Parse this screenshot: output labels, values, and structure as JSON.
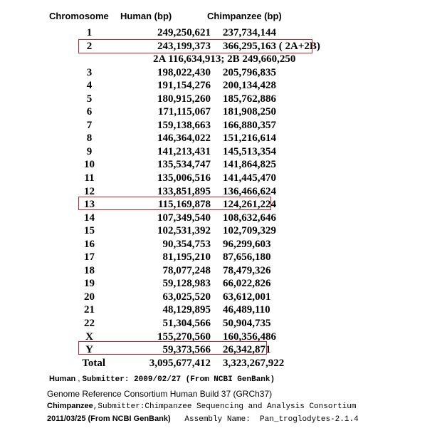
{
  "headers": {
    "chromosome": "Chromosome",
    "human": "Human  (bp)",
    "chimp": "Chimpanzee  (bp)"
  },
  "rows": [
    {
      "chr": "1",
      "human": "249,250,621",
      "chimp": "237,734,144"
    },
    {
      "chr": "2",
      "human": "243,199,373",
      "chimp": "366,295,163 ( 2A+2B)"
    },
    {
      "chr": "3",
      "human": "198,022,430",
      "chimp": "205,796,835"
    },
    {
      "chr": "4",
      "human": "191,154,276",
      "chimp": "200,134,428"
    },
    {
      "chr": "5",
      "human": "180,915,260",
      "chimp": "185,762,886"
    },
    {
      "chr": "6",
      "human": "171,115,067",
      "chimp": "181,908,250"
    },
    {
      "chr": "7",
      "human": "159,138,663",
      "chimp": "166,880,357"
    },
    {
      "chr": "8",
      "human": "146,364,022",
      "chimp": "151,216,614"
    },
    {
      "chr": "9",
      "human": "141,213,431",
      "chimp": "145,513,354"
    },
    {
      "chr": "10",
      "human": "135,534,747",
      "chimp": "141,864,825"
    },
    {
      "chr": "11",
      "human": "135,006,516",
      "chimp": "141,445,470"
    },
    {
      "chr": "12",
      "human": "133,851,895",
      "chimp": "136,466,624"
    },
    {
      "chr": "13",
      "human": "115,169,878",
      "chimp": "124,261,224"
    },
    {
      "chr": "14",
      "human": "107,349,540",
      "chimp": "108,632,646"
    },
    {
      "chr": "15",
      "human": "102,531,392",
      "chimp": "102,709,329"
    },
    {
      "chr": "16",
      "human": "90,354,753",
      "chimp": "96,299,603"
    },
    {
      "chr": "17",
      "human": "81,195,210",
      "chimp": "87,656,180"
    },
    {
      "chr": "18",
      "human": "78,077,248",
      "chimp": "78,479,326"
    },
    {
      "chr": "19",
      "human": "59,128,983",
      "chimp": "66,022,826"
    },
    {
      "chr": "20",
      "human": "63,025,520",
      "chimp": "63,612,001"
    },
    {
      "chr": "21",
      "human": "48,129,895",
      "chimp": "46,489,110"
    },
    {
      "chr": "22",
      "human": "51,304,566",
      "chimp": "50,904,735"
    },
    {
      "chr": "X",
      "human": "155,270,560",
      "chimp": "160,356,486"
    },
    {
      "chr": "Y",
      "human": "59,373,566",
      "chimp": "26,342,871"
    }
  ],
  "note_2": "2A 116,634,913; 2B 249,660,250",
  "total": {
    "label": "Total",
    "human": "3,095,677,412",
    "chimp": "3,323,267,922"
  },
  "highlight_color": "#c0282d",
  "footer": {
    "human_label": "Human",
    "human_sep": " , ",
    "human_submitter": "Submitter: 2009/02/27 (From NCBI GenBank)",
    "human_assembly": "Genome Reference Consortium Human Build 37 (GRCh37)",
    "chimp_label": "Chimpanzee",
    "chimp_submitter": ",Submitter:Chimpanzee Sequencing and Analysis Consortium",
    "chimp_date": "2011/03/25 (From NCBI GenBank)",
    "chimp_assembly": "   Assembly Name:  Pan_troglodytes-2.1.4"
  }
}
